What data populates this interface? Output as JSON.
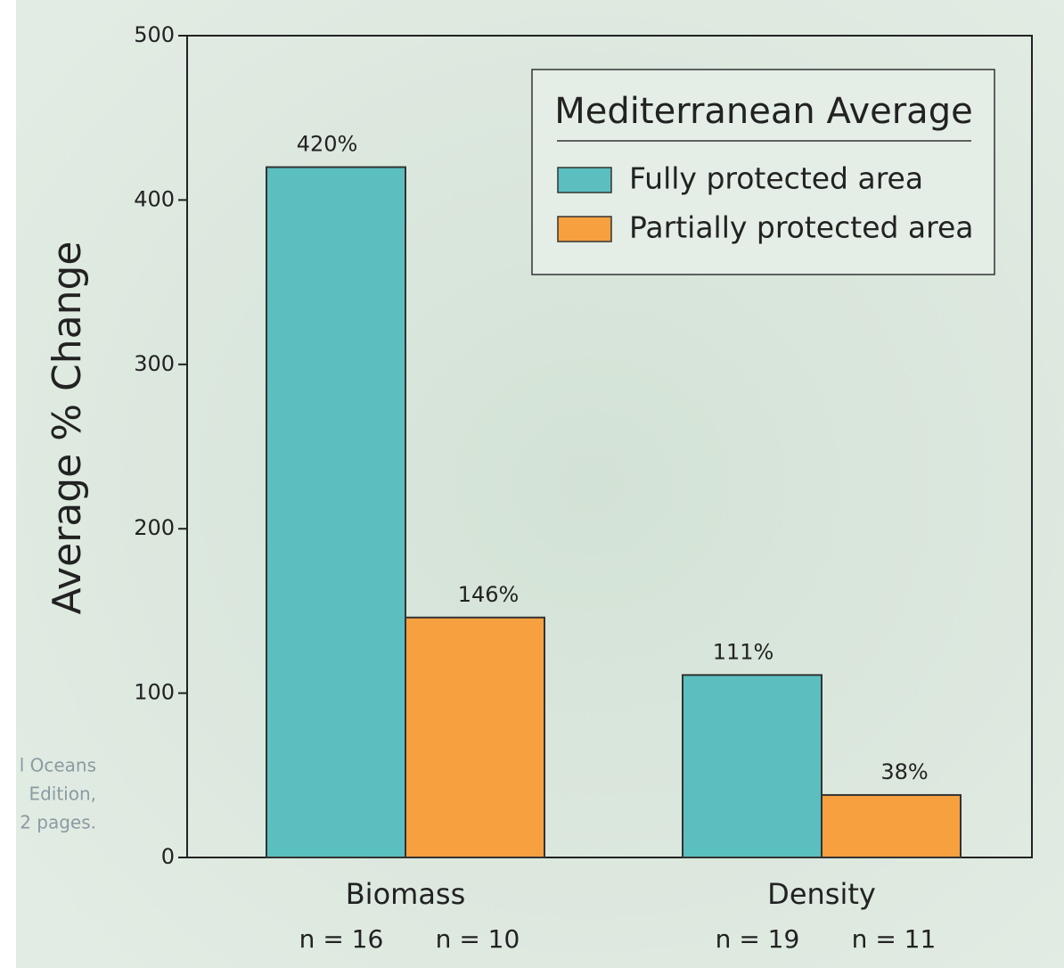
{
  "chart_data": {
    "type": "bar",
    "ylabel": "Average % Change",
    "categories": [
      "Biomass",
      "Density"
    ],
    "series": [
      {
        "name": "Fully protected area",
        "color": "#5bbfc0",
        "values": [
          420,
          111
        ],
        "value_labels": [
          "420%",
          "111%"
        ],
        "n_labels": [
          "n = 16",
          "n = 19"
        ]
      },
      {
        "name": "Partially protected area",
        "color": "#f6a03f",
        "values": [
          146,
          38
        ],
        "value_labels": [
          "146%",
          "38%"
        ],
        "n_labels": [
          "n = 10",
          "n = 11"
        ]
      }
    ],
    "legend_title": "Mediterranean Average",
    "legend_position": "upper right",
    "ylim": [
      0,
      500
    ],
    "yticks": [
      0,
      100,
      200,
      300,
      400,
      500
    ],
    "side_note_lines": [
      "l Oceans",
      "Edition,",
      "2 pages."
    ]
  }
}
